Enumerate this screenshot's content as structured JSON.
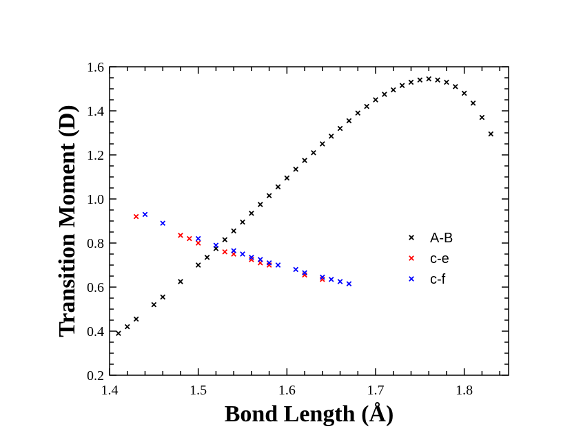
{
  "chart_data": {
    "type": "scatter",
    "title": "",
    "xlabel": "Bond Length (Å)",
    "ylabel": "Transition Moment (D)",
    "xlim": [
      1.4,
      1.85
    ],
    "ylim": [
      0.2,
      1.6
    ],
    "xticks": [
      1.4,
      1.5,
      1.6,
      1.7,
      1.8
    ],
    "xtick_labels": [
      "1.4",
      "1.5",
      "1.6",
      "1.7",
      "1.8"
    ],
    "yticks": [
      0.2,
      0.4,
      0.6,
      0.8,
      1.0,
      1.2,
      1.4,
      1.6
    ],
    "ytick_labels": [
      "0.2",
      "0.4",
      "0.6",
      "0.8",
      "1.0",
      "1.2",
      "1.4",
      "1.6"
    ],
    "legend_position": "right-middle",
    "marker": "x",
    "series": [
      {
        "name": "A-B",
        "color": "#000000",
        "x": [
          1.41,
          1.42,
          1.43,
          1.45,
          1.46,
          1.48,
          1.5,
          1.51,
          1.52,
          1.53,
          1.54,
          1.55,
          1.56,
          1.57,
          1.58,
          1.59,
          1.6,
          1.61,
          1.62,
          1.63,
          1.64,
          1.65,
          1.66,
          1.67,
          1.68,
          1.69,
          1.7,
          1.71,
          1.72,
          1.73,
          1.74,
          1.75,
          1.76,
          1.77,
          1.78,
          1.79,
          1.8,
          1.81,
          1.82,
          1.83
        ],
        "y": [
          0.39,
          0.42,
          0.455,
          0.52,
          0.555,
          0.625,
          0.7,
          0.735,
          0.775,
          0.815,
          0.855,
          0.895,
          0.935,
          0.975,
          1.015,
          1.055,
          1.095,
          1.135,
          1.175,
          1.21,
          1.25,
          1.285,
          1.32,
          1.355,
          1.39,
          1.42,
          1.45,
          1.475,
          1.495,
          1.515,
          1.53,
          1.54,
          1.545,
          1.54,
          1.53,
          1.51,
          1.48,
          1.435,
          1.37,
          1.295
        ]
      },
      {
        "name": "c-e",
        "color": "#ff0000",
        "x": [
          1.43,
          1.48,
          1.49,
          1.5,
          1.53,
          1.54,
          1.56,
          1.57,
          1.58,
          1.62,
          1.64
        ],
        "y": [
          0.92,
          0.835,
          0.82,
          0.8,
          0.76,
          0.75,
          0.725,
          0.71,
          0.7,
          0.655,
          0.635
        ]
      },
      {
        "name": "c-f",
        "color": "#0000ff",
        "x": [
          1.44,
          1.46,
          1.5,
          1.52,
          1.54,
          1.55,
          1.56,
          1.57,
          1.58,
          1.59,
          1.61,
          1.62,
          1.64,
          1.65,
          1.66,
          1.67
        ],
        "y": [
          0.93,
          0.89,
          0.82,
          0.79,
          0.765,
          0.75,
          0.735,
          0.725,
          0.71,
          0.7,
          0.68,
          0.665,
          0.645,
          0.635,
          0.625,
          0.615
        ]
      }
    ]
  }
}
